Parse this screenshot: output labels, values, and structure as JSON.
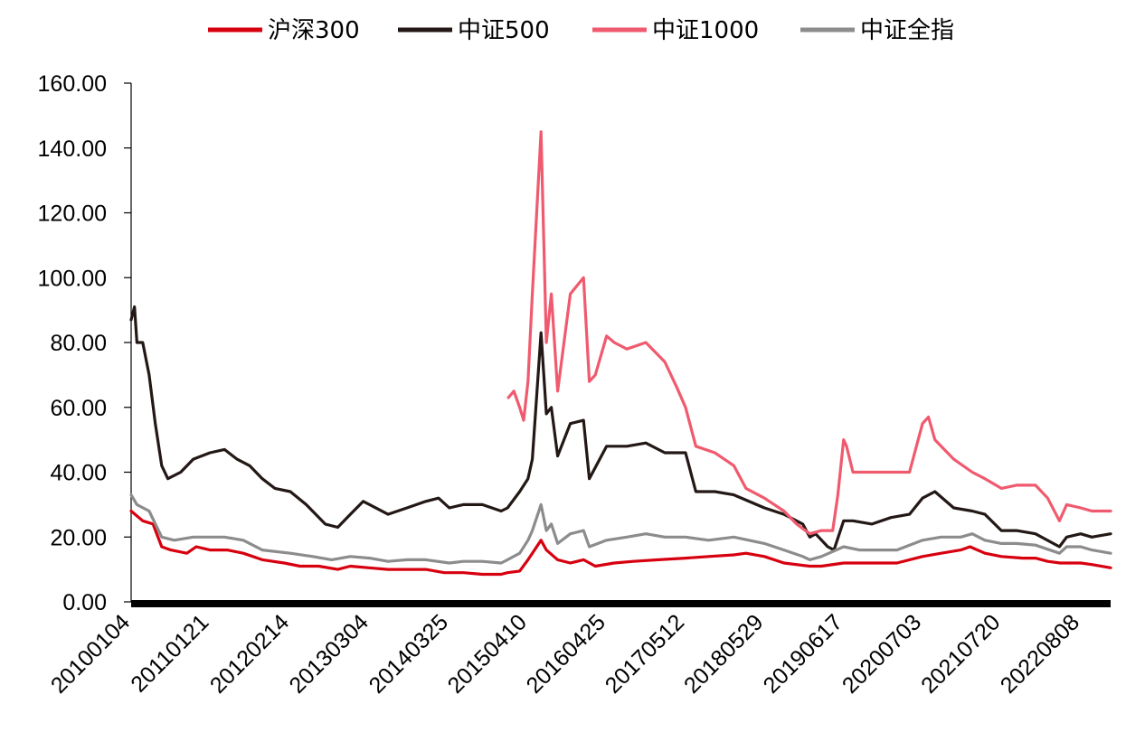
{
  "chart_data": {
    "type": "line",
    "title": "",
    "xlabel": "",
    "ylabel": "",
    "ylim": [
      0,
      160
    ],
    "y_ticks": [
      "0.00",
      "20.00",
      "40.00",
      "60.00",
      "80.00",
      "100.00",
      "120.00",
      "140.00",
      "160.00"
    ],
    "x_range": [
      "20100104",
      "20221231"
    ],
    "x_ticks": [
      "20100104",
      "20110121",
      "20120214",
      "20130304",
      "20140325",
      "20150410",
      "20160425",
      "20170512",
      "20180529",
      "20190617",
      "20200703",
      "20210720",
      "20220808"
    ],
    "grid": false,
    "legend_position": "top",
    "series": [
      {
        "name": "沪深300",
        "color": "#d7000f",
        "points": [
          [
            "20100104",
            28
          ],
          [
            "20100301",
            25
          ],
          [
            "20100420",
            24
          ],
          [
            "20100601",
            17
          ],
          [
            "20100715",
            16
          ],
          [
            "20101001",
            15
          ],
          [
            "20101115",
            17
          ],
          [
            "20110121",
            16
          ],
          [
            "20110415",
            16
          ],
          [
            "20110701",
            15
          ],
          [
            "20111001",
            13
          ],
          [
            "20120115",
            12
          ],
          [
            "20120401",
            11
          ],
          [
            "20120701",
            11
          ],
          [
            "20121001",
            10
          ],
          [
            "20121201",
            11
          ],
          [
            "20130301",
            10.5
          ],
          [
            "20130601",
            10
          ],
          [
            "20130901",
            10
          ],
          [
            "20131201",
            10
          ],
          [
            "20140301",
            9
          ],
          [
            "20140601",
            9
          ],
          [
            "20140901",
            8.5
          ],
          [
            "20141201",
            8.5
          ],
          [
            "20150101",
            9
          ],
          [
            "20150301",
            9.5
          ],
          [
            "20150410",
            13
          ],
          [
            "20150501",
            15
          ],
          [
            "20150612",
            19
          ],
          [
            "20150708",
            16
          ],
          [
            "20150901",
            13
          ],
          [
            "20151101",
            12
          ],
          [
            "20160104",
            13
          ],
          [
            "20160301",
            11
          ],
          [
            "20160601",
            12
          ],
          [
            "20160901",
            12.5
          ],
          [
            "20170101",
            13
          ],
          [
            "20170512",
            13.5
          ],
          [
            "20170901",
            14
          ],
          [
            "20180101",
            14.5
          ],
          [
            "20180301",
            15
          ],
          [
            "20180529",
            14
          ],
          [
            "20180901",
            12
          ],
          [
            "20190104",
            11
          ],
          [
            "20190301",
            11
          ],
          [
            "20190617",
            12
          ],
          [
            "20190901",
            12
          ],
          [
            "20191201",
            12
          ],
          [
            "20200301",
            12
          ],
          [
            "20200703",
            14
          ],
          [
            "20201001",
            15
          ],
          [
            "20210104",
            16
          ],
          [
            "20210218",
            17
          ],
          [
            "20210501",
            15
          ],
          [
            "20210720",
            14
          ],
          [
            "20211101",
            13.5
          ],
          [
            "20220101",
            13.5
          ],
          [
            "20220301",
            12.5
          ],
          [
            "20220501",
            12
          ],
          [
            "20220808",
            12
          ],
          [
            "20221001",
            11.5
          ],
          [
            "20221231",
            10.5
          ]
        ]
      },
      {
        "name": "中证500",
        "color": "#231815",
        "points": [
          [
            "20100104",
            87
          ],
          [
            "20100120",
            91
          ],
          [
            "20100201",
            80
          ],
          [
            "20100301",
            80
          ],
          [
            "20100401",
            70
          ],
          [
            "20100501",
            55
          ],
          [
            "20100601",
            42
          ],
          [
            "20100701",
            38
          ],
          [
            "20100901",
            40
          ],
          [
            "20101101",
            44
          ],
          [
            "20110121",
            46
          ],
          [
            "20110401",
            47
          ],
          [
            "20110601",
            44
          ],
          [
            "20110801",
            42
          ],
          [
            "20111001",
            38
          ],
          [
            "20111201",
            35
          ],
          [
            "20120214",
            34
          ],
          [
            "20120501",
            30
          ],
          [
            "20120801",
            24
          ],
          [
            "20121001",
            23
          ],
          [
            "20121201",
            27
          ],
          [
            "20130201",
            31
          ],
          [
            "20130304",
            30
          ],
          [
            "20130601",
            27
          ],
          [
            "20130901",
            29
          ],
          [
            "20131201",
            31
          ],
          [
            "20140201",
            32
          ],
          [
            "20140325",
            29
          ],
          [
            "20140601",
            30
          ],
          [
            "20140901",
            30
          ],
          [
            "20141201",
            28
          ],
          [
            "20150101",
            29
          ],
          [
            "20150301",
            34
          ],
          [
            "20150410",
            38
          ],
          [
            "20150501",
            44
          ],
          [
            "20150612",
            83
          ],
          [
            "20150708",
            58
          ],
          [
            "20150801",
            60
          ],
          [
            "20150901",
            45
          ],
          [
            "20151101",
            55
          ],
          [
            "20160104",
            56
          ],
          [
            "20160201",
            38
          ],
          [
            "20160425",
            48
          ],
          [
            "20160801",
            48
          ],
          [
            "20161101",
            49
          ],
          [
            "20170201",
            46
          ],
          [
            "20170512",
            46
          ],
          [
            "20170701",
            34
          ],
          [
            "20171001",
            34
          ],
          [
            "20180101",
            33
          ],
          [
            "20180529",
            29
          ],
          [
            "20180901",
            27
          ],
          [
            "20181201",
            24
          ],
          [
            "20190104",
            20
          ],
          [
            "20190201",
            21
          ],
          [
            "20190401",
            17
          ],
          [
            "20190501",
            16
          ],
          [
            "20190617",
            25
          ],
          [
            "20190801",
            25
          ],
          [
            "20191101",
            24
          ],
          [
            "20200201",
            26
          ],
          [
            "20200501",
            27
          ],
          [
            "20200703",
            32
          ],
          [
            "20200901",
            34
          ],
          [
            "20201201",
            29
          ],
          [
            "20210301",
            28
          ],
          [
            "20210501",
            27
          ],
          [
            "20210720",
            22
          ],
          [
            "20211001",
            22
          ],
          [
            "20220101",
            21
          ],
          [
            "20220427",
            17
          ],
          [
            "20220601",
            20
          ],
          [
            "20220808",
            21
          ],
          [
            "20221001",
            20
          ],
          [
            "20221231",
            21
          ]
        ]
      },
      {
        "name": "中证1000",
        "color": "#f05a6e",
        "points": [
          [
            "20150105",
            63
          ],
          [
            "20150201",
            65
          ],
          [
            "20150301",
            60
          ],
          [
            "20150320",
            56
          ],
          [
            "20150410",
            68
          ],
          [
            "20150501",
            95
          ],
          [
            "20150612",
            145
          ],
          [
            "20150708",
            80
          ],
          [
            "20150801",
            95
          ],
          [
            "20150901",
            65
          ],
          [
            "20151101",
            95
          ],
          [
            "20160104",
            100
          ],
          [
            "20160201",
            68
          ],
          [
            "20160301",
            70
          ],
          [
            "20160425",
            82
          ],
          [
            "20160601",
            80
          ],
          [
            "20160801",
            78
          ],
          [
            "20161101",
            80
          ],
          [
            "20170201",
            74
          ],
          [
            "20170401",
            66
          ],
          [
            "20170512",
            60
          ],
          [
            "20170701",
            48
          ],
          [
            "20171001",
            46
          ],
          [
            "20180101",
            42
          ],
          [
            "20180301",
            35
          ],
          [
            "20180529",
            32
          ],
          [
            "20180901",
            28
          ],
          [
            "20181101",
            24
          ],
          [
            "20190104",
            21
          ],
          [
            "20190301",
            22
          ],
          [
            "20190425",
            22
          ],
          [
            "20190520",
            33
          ],
          [
            "20190617",
            50
          ],
          [
            "20190701",
            48
          ],
          [
            "20190801",
            40
          ],
          [
            "20191101",
            40
          ],
          [
            "20200201",
            40
          ],
          [
            "20200501",
            40
          ],
          [
            "20200703",
            55
          ],
          [
            "20200801",
            57
          ],
          [
            "20200901",
            50
          ],
          [
            "20201201",
            44
          ],
          [
            "20210301",
            40
          ],
          [
            "20210501",
            38
          ],
          [
            "20210720",
            35
          ],
          [
            "20211001",
            36
          ],
          [
            "20220101",
            36
          ],
          [
            "20220301",
            32
          ],
          [
            "20220427",
            25
          ],
          [
            "20220601",
            30
          ],
          [
            "20220808",
            29
          ],
          [
            "20221001",
            28
          ],
          [
            "20221231",
            28
          ]
        ]
      },
      {
        "name": "中证全指",
        "color": "#8c8c8c",
        "points": [
          [
            "20100104",
            33
          ],
          [
            "20100201",
            30
          ],
          [
            "20100401",
            28
          ],
          [
            "20100601",
            20
          ],
          [
            "20100801",
            19
          ],
          [
            "20101101",
            20
          ],
          [
            "20110121",
            20
          ],
          [
            "20110401",
            20
          ],
          [
            "20110701",
            19
          ],
          [
            "20111001",
            16
          ],
          [
            "20120214",
            15
          ],
          [
            "20120601",
            14
          ],
          [
            "20120901",
            13
          ],
          [
            "20121201",
            14
          ],
          [
            "20130304",
            13.5
          ],
          [
            "20130601",
            12.5
          ],
          [
            "20130901",
            13
          ],
          [
            "20131201",
            13
          ],
          [
            "20140325",
            12
          ],
          [
            "20140601",
            12.5
          ],
          [
            "20140901",
            12.5
          ],
          [
            "20141201",
            12
          ],
          [
            "20150101",
            13
          ],
          [
            "20150301",
            15
          ],
          [
            "20150410",
            19
          ],
          [
            "20150501",
            22
          ],
          [
            "20150612",
            30
          ],
          [
            "20150708",
            22
          ],
          [
            "20150801",
            24
          ],
          [
            "20150901",
            18
          ],
          [
            "20151101",
            21
          ],
          [
            "20160104",
            22
          ],
          [
            "20160201",
            17
          ],
          [
            "20160425",
            19
          ],
          [
            "20160801",
            20
          ],
          [
            "20161101",
            21
          ],
          [
            "20170201",
            20
          ],
          [
            "20170512",
            20
          ],
          [
            "20170901",
            19
          ],
          [
            "20180101",
            20
          ],
          [
            "20180529",
            18
          ],
          [
            "20180901",
            16
          ],
          [
            "20181201",
            14
          ],
          [
            "20190104",
            13
          ],
          [
            "20190301",
            14
          ],
          [
            "20190617",
            17
          ],
          [
            "20190901",
            16
          ],
          [
            "20191201",
            16
          ],
          [
            "20200301",
            16
          ],
          [
            "20200703",
            19
          ],
          [
            "20201001",
            20
          ],
          [
            "20210104",
            20
          ],
          [
            "20210301",
            21
          ],
          [
            "20210501",
            19
          ],
          [
            "20210720",
            18
          ],
          [
            "20211001",
            18
          ],
          [
            "20220101",
            17.5
          ],
          [
            "20220427",
            15
          ],
          [
            "20220601",
            17
          ],
          [
            "20220808",
            17
          ],
          [
            "20221001",
            16
          ],
          [
            "20221231",
            15
          ]
        ]
      }
    ]
  }
}
